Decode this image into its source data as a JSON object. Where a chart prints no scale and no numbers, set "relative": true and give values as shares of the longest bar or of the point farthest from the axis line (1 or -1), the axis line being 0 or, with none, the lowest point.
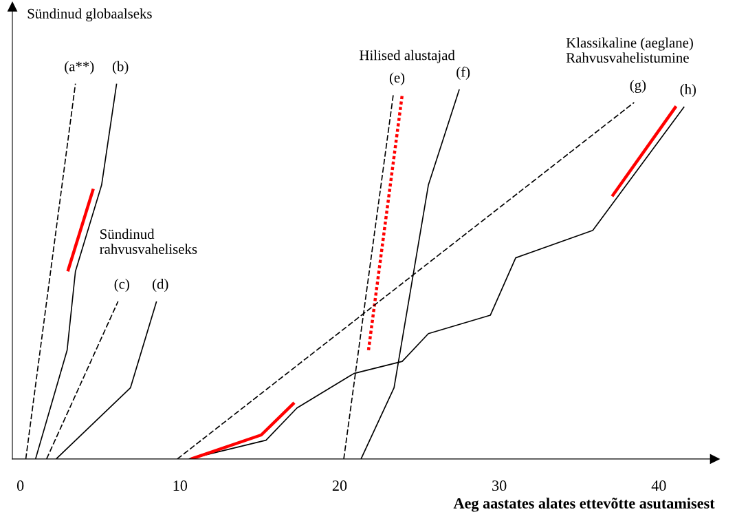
{
  "chart_data": {
    "type": "line",
    "relative": true,
    "xlabel": "Aeg aastates alates ettevõtte asutamisest",
    "xlim": [
      -0.5,
      43.5
    ],
    "xticks": [
      0,
      10,
      20,
      30,
      40
    ],
    "grid": false,
    "legend": false,
    "marker": "none",
    "series": [
      {
        "name": "(a**)",
        "color": "#000000",
        "line_style": "dashed",
        "x": [
          0.34,
          3.45
        ],
        "values": [
          0,
          1
        ]
      },
      {
        "name": "(b)",
        "color": "#000000",
        "line_style": "solid",
        "x": [
          0.95,
          2.93,
          3.45,
          5.09,
          6.03
        ],
        "values": [
          0,
          0.29,
          0.5,
          0.73,
          1
        ]
      },
      {
        "color": "#ff0000",
        "line_style": "solid",
        "x": [
          2.97,
          4.57
        ],
        "values": [
          0.5,
          0.72
        ]
      },
      {
        "name": "(c)",
        "color": "#000000",
        "line_style": "dashed",
        "x": [
          1.64,
          6.12
        ],
        "values": [
          0,
          0.42
        ]
      },
      {
        "name": "(d)",
        "color": "#000000",
        "line_style": "solid",
        "x": [
          2.24,
          6.9,
          8.53
        ],
        "values": [
          0,
          0.19,
          0.42
        ]
      },
      {
        "name": "(e)",
        "color": "#000000",
        "line_style": "dashed",
        "x": [
          20.26,
          23.36
        ],
        "values": [
          0,
          0.97
        ]
      },
      {
        "color": "#ff0000",
        "line_style": "dotted",
        "x": [
          21.81,
          23.92
        ],
        "values": [
          0.29,
          0.97
        ]
      },
      {
        "name": "(f)",
        "color": "#000000",
        "line_style": "solid",
        "x": [
          21.34,
          23.41,
          25.56,
          27.5
        ],
        "values": [
          0,
          0.19,
          0.73,
          0.985
        ]
      },
      {
        "name": "(g)",
        "color": "#000000",
        "line_style": "dashed",
        "x": [
          9.83,
          38.45
        ],
        "values": [
          0,
          0.95
        ]
      },
      {
        "name": "(h)",
        "color": "#000000",
        "line_style": "solid",
        "x": [
          10.56,
          15.39,
          17.33,
          20.9,
          23.92,
          25.56,
          29.44,
          31.03,
          35.86,
          41.59
        ],
        "values": [
          0,
          0.05,
          0.136,
          0.228,
          0.26,
          0.334,
          0.383,
          0.536,
          0.609,
          0.939
        ]
      },
      {
        "color": "#ff0000",
        "line_style": "solid",
        "x": [
          10.69,
          15.09,
          17.16
        ],
        "values": [
          0,
          0.064,
          0.15
        ]
      },
      {
        "color": "#ff0000",
        "line_style": "solid",
        "x": [
          37.07,
          41.08
        ],
        "values": [
          0.7,
          0.94
        ]
      }
    ],
    "annotations": [
      "Sündinud globaalseks",
      "Sündinud\nrahvusvaheliseks",
      "Hilised alustajad",
      "Klassikaline (aeglane)\nRahvusvahelistumine"
    ]
  }
}
